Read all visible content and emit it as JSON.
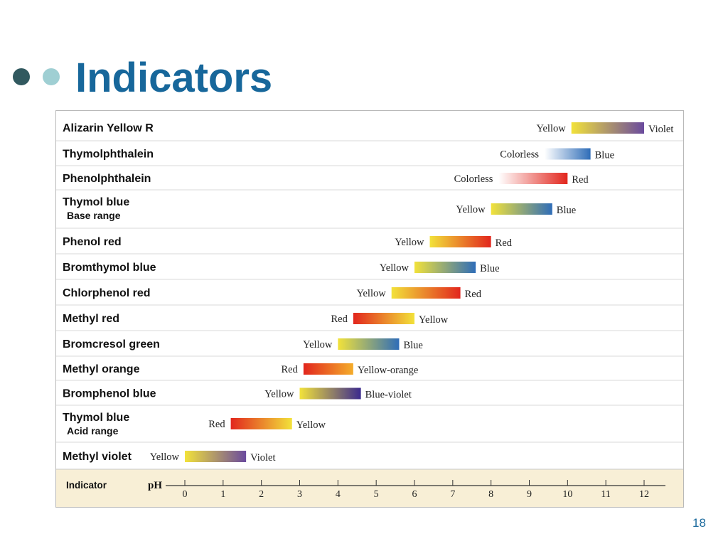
{
  "slide": {
    "title": "Indicators",
    "page_number": "18"
  },
  "colors": {
    "title": "#17679b",
    "bullet_dark": "#31595f",
    "bullet_light": "#9fcfd3",
    "axis_panel": "#f8efd6",
    "Yellow": "#f2e23a",
    "Violet": "#6a4a9e",
    "Colorless": "#ffffff",
    "Blue": "#2f6db8",
    "Red": "#e2261d",
    "Yellow-orange": "#f4ad2b",
    "Blue-violet": "#3b2a8e"
  },
  "chart_data": {
    "type": "bar",
    "axis": {
      "label": "pH",
      "row_header": "Indicator",
      "min": 0,
      "max": 12,
      "ticks": [
        "0",
        "1",
        "2",
        "3",
        "4",
        "5",
        "6",
        "7",
        "8",
        "9",
        "10",
        "11",
        "12"
      ]
    },
    "indicators": [
      {
        "name": "Alizarin Yellow R",
        "sub": "",
        "low": 10.1,
        "high": 12.0,
        "from": "Yellow",
        "to": "Violet"
      },
      {
        "name": "Thymolphthalein",
        "sub": "",
        "low": 9.4,
        "high": 10.6,
        "from": "Colorless",
        "to": "Blue"
      },
      {
        "name": "Phenolphthalein",
        "sub": "",
        "low": 8.2,
        "high": 10.0,
        "from": "Colorless",
        "to": "Red"
      },
      {
        "name": "Thymol  blue",
        "sub": "Base range",
        "low": 8.0,
        "high": 9.6,
        "from": "Yellow",
        "to": "Blue"
      },
      {
        "name": "Phenol red",
        "sub": "",
        "low": 6.4,
        "high": 8.0,
        "from": "Yellow",
        "to": "Red"
      },
      {
        "name": "Bromthymol blue",
        "sub": "",
        "low": 6.0,
        "high": 7.6,
        "from": "Yellow",
        "to": "Blue"
      },
      {
        "name": "Chlorphenol red",
        "sub": "",
        "low": 5.4,
        "high": 7.2,
        "from": "Yellow",
        "to": "Red"
      },
      {
        "name": "Methyl red",
        "sub": "",
        "low": 4.4,
        "high": 6.0,
        "from": "Red",
        "to": "Yellow"
      },
      {
        "name": "Bromcresol green",
        "sub": "",
        "low": 4.0,
        "high": 5.6,
        "from": "Yellow",
        "to": "Blue"
      },
      {
        "name": "Methyl orange",
        "sub": "",
        "low": 3.1,
        "high": 4.4,
        "from": "Red",
        "to": "Yellow-orange"
      },
      {
        "name": "Bromphenol blue",
        "sub": "",
        "low": 3.0,
        "high": 4.6,
        "from": "Yellow",
        "to": "Blue-violet"
      },
      {
        "name": "Thymol blue",
        "sub": "Acid range",
        "low": 1.2,
        "high": 2.8,
        "from": "Red",
        "to": "Yellow"
      },
      {
        "name": "Methyl violet",
        "sub": "",
        "low": 0.0,
        "high": 1.6,
        "from": "Yellow",
        "to": "Violet"
      }
    ]
  }
}
